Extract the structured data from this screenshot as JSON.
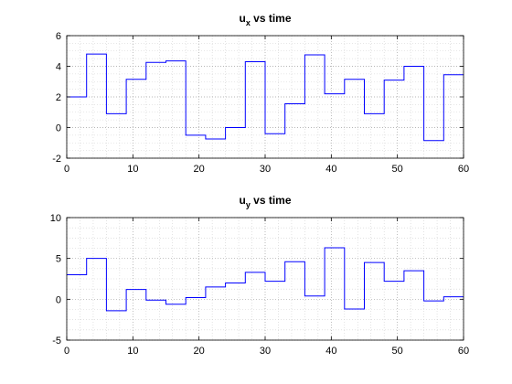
{
  "chart_data": [
    {
      "type": "line",
      "line_style": "stairs",
      "title": {
        "main": "u",
        "sub": "x",
        "rest": " vs time"
      },
      "xlabel": "",
      "ylabel": "",
      "xlim": [
        0,
        60
      ],
      "ylim": [
        -2,
        6
      ],
      "xticks": [
        0,
        10,
        20,
        30,
        40,
        50,
        60
      ],
      "yticks": [
        -2,
        0,
        2,
        4,
        6
      ],
      "grid": "dotted",
      "minor_grid": true,
      "series": [
        {
          "color": "#0000ff",
          "x": [
            0,
            3,
            6,
            9,
            12,
            15,
            18,
            21,
            24,
            27,
            30,
            33,
            36,
            39,
            42,
            45,
            48,
            51,
            54,
            57,
            60
          ],
          "y": [
            2.0,
            4.8,
            0.9,
            3.15,
            4.25,
            4.35,
            -0.5,
            -0.75,
            0.0,
            4.3,
            -0.4,
            1.55,
            4.75,
            2.2,
            3.15,
            0.9,
            3.1,
            4.0,
            -0.85,
            3.45,
            3.45
          ]
        }
      ]
    },
    {
      "type": "line",
      "line_style": "stairs",
      "title": {
        "main": "u",
        "sub": "y",
        "rest": " vs time"
      },
      "xlabel": "",
      "ylabel": "",
      "xlim": [
        0,
        60
      ],
      "ylim": [
        -5,
        10
      ],
      "xticks": [
        0,
        10,
        20,
        30,
        40,
        50,
        60
      ],
      "yticks": [
        -5,
        0,
        5,
        10
      ],
      "grid": "dotted",
      "minor_grid": true,
      "series": [
        {
          "color": "#0000ff",
          "x": [
            0,
            3,
            6,
            9,
            12,
            15,
            18,
            21,
            24,
            27,
            30,
            33,
            36,
            39,
            42,
            45,
            48,
            51,
            54,
            57,
            60
          ],
          "y": [
            3.0,
            5.0,
            -1.4,
            1.2,
            -0.1,
            -0.6,
            0.2,
            1.5,
            2.0,
            3.3,
            2.2,
            4.6,
            0.4,
            6.3,
            -1.2,
            4.5,
            2.2,
            3.5,
            -0.2,
            0.3,
            0.3
          ]
        }
      ]
    }
  ]
}
